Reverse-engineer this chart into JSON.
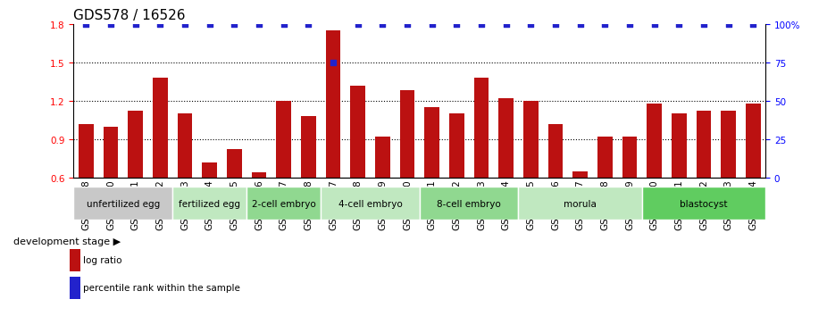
{
  "title": "GDS578 / 16526",
  "samples": [
    "GSM14658",
    "GSM14660",
    "GSM14661",
    "GSM14662",
    "GSM14663",
    "GSM14664",
    "GSM14665",
    "GSM14666",
    "GSM14667",
    "GSM14668",
    "GSM14677",
    "GSM14678",
    "GSM14679",
    "GSM14680",
    "GSM14681",
    "GSM14682",
    "GSM14683",
    "GSM14684",
    "GSM14685",
    "GSM14686",
    "GSM14687",
    "GSM14688",
    "GSM14689",
    "GSM14690",
    "GSM14691",
    "GSM14692",
    "GSM14693",
    "GSM14694"
  ],
  "log_ratio": [
    1.02,
    1.0,
    1.12,
    1.38,
    1.1,
    0.72,
    0.82,
    0.64,
    1.2,
    1.08,
    1.75,
    1.32,
    0.92,
    1.28,
    1.15,
    1.1,
    1.38,
    1.22,
    1.2,
    1.02,
    0.65,
    0.92,
    0.92,
    1.18,
    1.1,
    1.12,
    1.12,
    1.18
  ],
  "percentile": [
    100,
    100,
    100,
    100,
    100,
    100,
    100,
    100,
    100,
    100,
    75,
    100,
    100,
    100,
    100,
    100,
    100,
    100,
    100,
    100,
    100,
    100,
    100,
    100,
    100,
    100,
    100,
    100
  ],
  "groups": [
    {
      "label": "unfertilized egg",
      "start": 0,
      "end": 4,
      "color": "#c8c8c8"
    },
    {
      "label": "fertilized egg",
      "start": 4,
      "end": 7,
      "color": "#c0e8c0"
    },
    {
      "label": "2-cell embryo",
      "start": 7,
      "end": 10,
      "color": "#90d890"
    },
    {
      "label": "4-cell embryo",
      "start": 10,
      "end": 14,
      "color": "#c0e8c0"
    },
    {
      "label": "8-cell embryo",
      "start": 14,
      "end": 18,
      "color": "#90d890"
    },
    {
      "label": "morula",
      "start": 18,
      "end": 23,
      "color": "#c0e8c0"
    },
    {
      "label": "blastocyst",
      "start": 23,
      "end": 28,
      "color": "#60cc60"
    }
  ],
  "bar_color": "#bb1111",
  "dot_color": "#2222cc",
  "ylim_left": [
    0.6,
    1.8
  ],
  "ylim_right": [
    0,
    100
  ],
  "yticks_left": [
    0.6,
    0.9,
    1.2,
    1.5,
    1.8
  ],
  "yticks_right": [
    0,
    25,
    50,
    75,
    100
  ],
  "right_tick_labels": [
    "0",
    "25",
    "50",
    "75",
    "100%"
  ],
  "grid_lines": [
    0.9,
    1.2,
    1.5
  ],
  "legend_items": [
    "log ratio",
    "percentile rank within the sample"
  ],
  "background_color": "#ffffff",
  "title_fontsize": 11,
  "tick_fontsize": 7.5,
  "label_fontsize": 8
}
